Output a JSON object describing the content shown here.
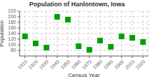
{
  "chart_data": {
    "type": "scatter",
    "title": "Population of Hanlontown, Iowa",
    "xlabel": "Census Year",
    "ylabel": "Population",
    "x": [
      1910,
      1920,
      1930,
      1940,
      1950,
      1960,
      1970,
      1980,
      1990,
      2000,
      2010,
      2020
    ],
    "values": [
      130,
      105,
      90,
      200,
      190,
      95,
      82,
      115,
      93,
      130,
      125,
      110
    ],
    "color": "#00a000",
    "marker": "square",
    "xlim": [
      1905,
      2025
    ],
    "ylim": [
      60,
      220
    ],
    "xticks": [
      1910,
      1920,
      1930,
      1940,
      1950,
      1960,
      1970,
      1980,
      1990,
      2000,
      2010,
      2020
    ],
    "yticks": [
      80,
      100,
      120,
      140,
      160,
      180,
      200,
      220
    ],
    "grid": true
  }
}
